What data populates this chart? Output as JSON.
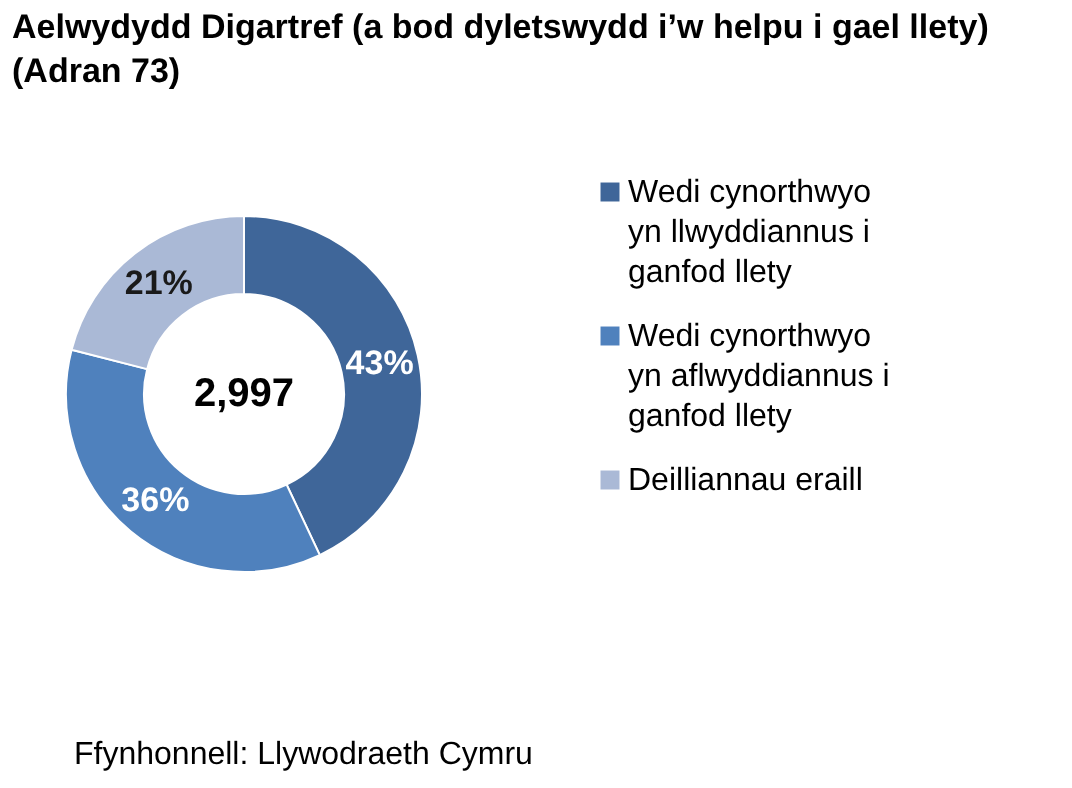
{
  "chart_data": {
    "type": "donut",
    "title": "Aelwydydd Digartref (a bod dyletswydd i’w helpu i gael llety) (Adran 73)",
    "categories": [
      "Wedi cynorthwyo yn llwyddiannus i ganfod llety",
      "Wedi cynorthwyo yn aflwyddiannus i ganfod llety",
      "Deilliannau eraill"
    ],
    "values": [
      43,
      36,
      21
    ],
    "colors": [
      "#3f6699",
      "#4f81bd",
      "#aab9d6"
    ],
    "value_labels": [
      "43%",
      "36%",
      "21%"
    ],
    "legend": "right",
    "annotations": [
      "2,997",
      "Ffynhonnell: Llywodraeth Cymru"
    ]
  }
}
